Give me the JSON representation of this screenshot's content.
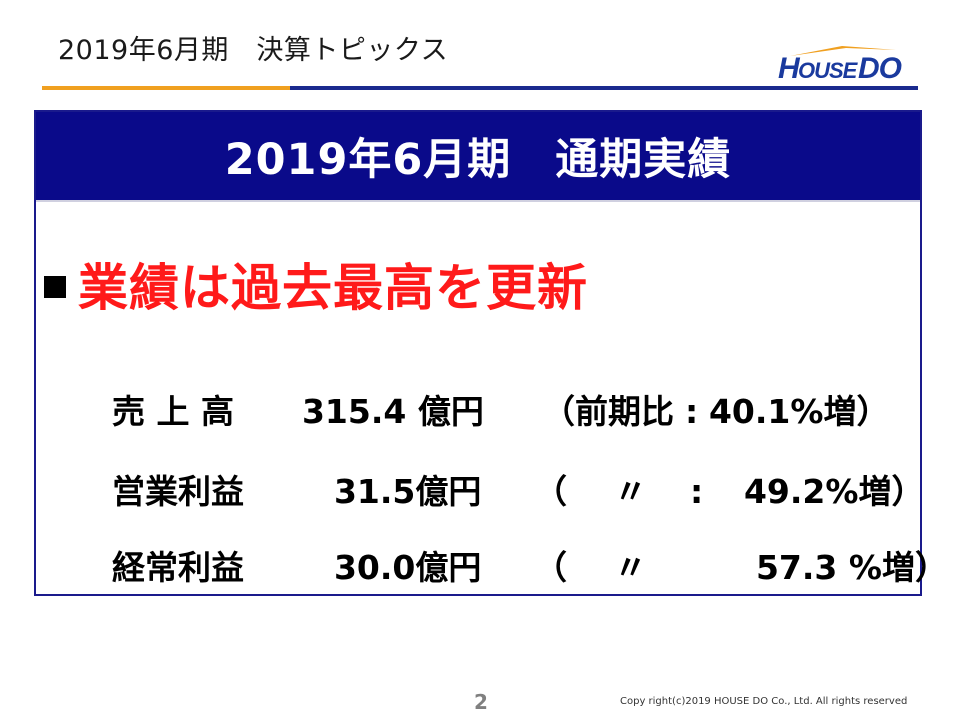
{
  "header": {
    "title": "2019年6月期　決算トピックス",
    "logo_text": "HOUSEDO",
    "colors": {
      "logo_blue": "#1a3a9e",
      "logo_orange": "#f0a020",
      "rule_orange": "#f0a020",
      "rule_blue": "#1a2a8e"
    }
  },
  "panel": {
    "title": "2019年6月期　通期実績",
    "header_color": "#0a0a8a",
    "headline": "業績は過去最高を更新",
    "headline_color": "#ff1a1a",
    "rows": [
      {
        "label": "売 上 高",
        "value": "315.4 億円",
        "paren_open": "（",
        "ref": "前期比",
        "sep": ":",
        "change": "40.1%増",
        "paren_close": "）"
      },
      {
        "label": "営業利益",
        "value": "31.5億円",
        "paren_open": "（",
        "ref": "〃",
        "sep": ":",
        "change": "49.2%増",
        "paren_close": "）"
      },
      {
        "label": "経常利益",
        "value": "30.0億円",
        "paren_open": "（",
        "ref": "〃",
        "sep": "",
        "change": "57.3 %増",
        "paren_close": "）"
      }
    ]
  },
  "footer": {
    "page_number": "2",
    "copyright": "Copy right(c)2019  HOUSE DO Co., Ltd.  All rights reserved"
  }
}
